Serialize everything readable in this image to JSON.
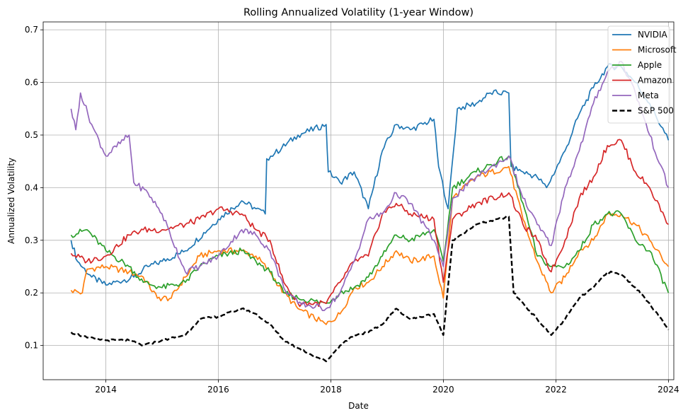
{
  "chart_data": {
    "type": "line",
    "title": "Rolling Annualized Volatility (1-year Window)",
    "xlabel": "Date",
    "ylabel": "Annualized Volatility",
    "xlim": [
      "2012-11-20",
      "2024-02-05"
    ],
    "ylim": [
      0.035,
      0.715
    ],
    "x_ticks": [
      "2014-01-01",
      "2016-01-01",
      "2018-01-01",
      "2020-01-01",
      "2022-01-01",
      "2024-01-01"
    ],
    "x_tick_labels": [
      "2014",
      "2016",
      "2018",
      "2020",
      "2022",
      "2024"
    ],
    "y_ticks": [
      0.1,
      0.2,
      0.3,
      0.4,
      0.5,
      0.6,
      0.7
    ],
    "y_tick_labels": [
      "0.1",
      "0.2",
      "0.3",
      "0.4",
      "0.5",
      "0.6",
      "0.7"
    ],
    "grid": true,
    "legend_position": "top-right",
    "series": [
      {
        "name": "NVIDIA",
        "color": "#1f77b4",
        "style": "solid",
        "points": [
          [
            "2013-05-20",
            0.3
          ],
          [
            "2013-07-01",
            0.26
          ],
          [
            "2013-10-01",
            0.23
          ],
          [
            "2014-01-01",
            0.215
          ],
          [
            "2014-07-01",
            0.23
          ],
          [
            "2014-10-01",
            0.25
          ],
          [
            "2015-01-01",
            0.26
          ],
          [
            "2015-06-01",
            0.28
          ],
          [
            "2016-01-01",
            0.34
          ],
          [
            "2016-06-01",
            0.375
          ],
          [
            "2016-09-01",
            0.36
          ],
          [
            "2016-11-01",
            0.35
          ],
          [
            "2016-11-10",
            0.455
          ],
          [
            "2017-01-01",
            0.465
          ],
          [
            "2017-06-01",
            0.5
          ],
          [
            "2017-12-01",
            0.52
          ],
          [
            "2017-12-15",
            0.43
          ],
          [
            "2018-03-01",
            0.41
          ],
          [
            "2018-06-01",
            0.43
          ],
          [
            "2018-09-01",
            0.36
          ],
          [
            "2018-12-01",
            0.47
          ],
          [
            "2019-03-01",
            0.52
          ],
          [
            "2019-06-01",
            0.51
          ],
          [
            "2019-11-01",
            0.53
          ],
          [
            "2019-12-01",
            0.44
          ],
          [
            "2020-02-01",
            0.36
          ],
          [
            "2020-04-01",
            0.55
          ],
          [
            "2020-08-01",
            0.56
          ],
          [
            "2020-11-01",
            0.58
          ],
          [
            "2021-03-01",
            0.58
          ],
          [
            "2021-03-15",
            0.44
          ],
          [
            "2021-06-01",
            0.43
          ],
          [
            "2021-09-01",
            0.42
          ],
          [
            "2021-11-01",
            0.4
          ],
          [
            "2022-03-01",
            0.47
          ],
          [
            "2022-06-01",
            0.54
          ],
          [
            "2022-09-01",
            0.59
          ],
          [
            "2022-12-01",
            0.63
          ],
          [
            "2023-03-01",
            0.63
          ],
          [
            "2023-06-01",
            0.6
          ],
          [
            "2023-09-01",
            0.56
          ],
          [
            "2024-01-01",
            0.49
          ]
        ]
      },
      {
        "name": "Microsoft",
        "color": "#ff7f0e",
        "style": "solid",
        "points": [
          [
            "2013-05-20",
            0.205
          ],
          [
            "2013-08-01",
            0.2
          ],
          [
            "2013-09-01",
            0.245
          ],
          [
            "2014-01-01",
            0.25
          ],
          [
            "2014-06-01",
            0.24
          ],
          [
            "2014-09-01",
            0.23
          ],
          [
            "2014-12-01",
            0.19
          ],
          [
            "2015-03-01",
            0.19
          ],
          [
            "2015-06-01",
            0.23
          ],
          [
            "2015-09-01",
            0.27
          ],
          [
            "2016-01-01",
            0.28
          ],
          [
            "2016-06-01",
            0.28
          ],
          [
            "2016-09-01",
            0.27
          ],
          [
            "2016-12-01",
            0.24
          ],
          [
            "2017-03-01",
            0.2
          ],
          [
            "2017-06-01",
            0.17
          ],
          [
            "2017-12-01",
            0.14
          ],
          [
            "2018-03-01",
            0.16
          ],
          [
            "2018-06-01",
            0.21
          ],
          [
            "2018-09-01",
            0.22
          ],
          [
            "2018-12-01",
            0.25
          ],
          [
            "2019-03-01",
            0.28
          ],
          [
            "2019-06-01",
            0.26
          ],
          [
            "2019-11-01",
            0.27
          ],
          [
            "2020-01-01",
            0.19
          ],
          [
            "2020-03-01",
            0.38
          ],
          [
            "2020-08-01",
            0.42
          ],
          [
            "2021-03-01",
            0.44
          ],
          [
            "2021-06-01",
            0.34
          ],
          [
            "2021-09-01",
            0.26
          ],
          [
            "2021-12-01",
            0.2
          ],
          [
            "2022-03-01",
            0.23
          ],
          [
            "2022-06-01",
            0.28
          ],
          [
            "2022-09-01",
            0.3
          ],
          [
            "2022-12-01",
            0.35
          ],
          [
            "2023-03-01",
            0.35
          ],
          [
            "2023-06-01",
            0.33
          ],
          [
            "2023-09-01",
            0.3
          ],
          [
            "2024-01-01",
            0.25
          ]
        ]
      },
      {
        "name": "Apple",
        "color": "#2ca02c",
        "style": "solid",
        "points": [
          [
            "2013-05-20",
            0.31
          ],
          [
            "2013-09-01",
            0.32
          ],
          [
            "2014-01-01",
            0.28
          ],
          [
            "2014-06-01",
            0.25
          ],
          [
            "2014-09-01",
            0.22
          ],
          [
            "2015-01-01",
            0.21
          ],
          [
            "2015-06-01",
            0.22
          ],
          [
            "2015-09-01",
            0.25
          ],
          [
            "2016-01-01",
            0.27
          ],
          [
            "2016-06-01",
            0.28
          ],
          [
            "2016-09-01",
            0.26
          ],
          [
            "2016-12-01",
            0.24
          ],
          [
            "2017-03-01",
            0.2
          ],
          [
            "2017-06-01",
            0.19
          ],
          [
            "2017-12-01",
            0.18
          ],
          [
            "2018-03-01",
            0.2
          ],
          [
            "2018-06-01",
            0.21
          ],
          [
            "2018-09-01",
            0.23
          ],
          [
            "2018-12-01",
            0.27
          ],
          [
            "2019-03-01",
            0.31
          ],
          [
            "2019-06-01",
            0.3
          ],
          [
            "2019-11-01",
            0.32
          ],
          [
            "2020-01-01",
            0.26
          ],
          [
            "2020-03-01",
            0.4
          ],
          [
            "2020-08-01",
            0.43
          ],
          [
            "2021-03-01",
            0.46
          ],
          [
            "2021-06-01",
            0.37
          ],
          [
            "2021-09-01",
            0.27
          ],
          [
            "2021-12-01",
            0.25
          ],
          [
            "2022-03-01",
            0.25
          ],
          [
            "2022-06-01",
            0.28
          ],
          [
            "2022-09-01",
            0.33
          ],
          [
            "2022-12-01",
            0.35
          ],
          [
            "2023-03-01",
            0.35
          ],
          [
            "2023-06-01",
            0.3
          ],
          [
            "2023-09-01",
            0.28
          ],
          [
            "2024-01-01",
            0.2
          ]
        ]
      },
      {
        "name": "Amazon",
        "color": "#d62728",
        "style": "solid",
        "points": [
          [
            "2013-05-20",
            0.275
          ],
          [
            "2013-09-01",
            0.26
          ],
          [
            "2014-01-01",
            0.27
          ],
          [
            "2014-06-01",
            0.31
          ],
          [
            "2014-09-01",
            0.32
          ],
          [
            "2015-01-01",
            0.32
          ],
          [
            "2015-06-01",
            0.33
          ],
          [
            "2015-09-01",
            0.34
          ],
          [
            "2016-01-01",
            0.36
          ],
          [
            "2016-06-01",
            0.35
          ],
          [
            "2016-09-01",
            0.32
          ],
          [
            "2016-12-01",
            0.3
          ],
          [
            "2017-03-01",
            0.22
          ],
          [
            "2017-06-01",
            0.18
          ],
          [
            "2017-12-01",
            0.18
          ],
          [
            "2018-03-01",
            0.22
          ],
          [
            "2018-06-01",
            0.26
          ],
          [
            "2018-09-01",
            0.27
          ],
          [
            "2018-12-01",
            0.35
          ],
          [
            "2019-03-01",
            0.37
          ],
          [
            "2019-06-01",
            0.35
          ],
          [
            "2019-11-01",
            0.34
          ],
          [
            "2020-01-01",
            0.22
          ],
          [
            "2020-03-01",
            0.34
          ],
          [
            "2020-08-01",
            0.37
          ],
          [
            "2021-03-01",
            0.39
          ],
          [
            "2021-06-01",
            0.33
          ],
          [
            "2021-09-01",
            0.3
          ],
          [
            "2021-12-01",
            0.24
          ],
          [
            "2022-03-01",
            0.3
          ],
          [
            "2022-06-01",
            0.38
          ],
          [
            "2022-09-01",
            0.42
          ],
          [
            "2022-12-01",
            0.48
          ],
          [
            "2023-03-01",
            0.49
          ],
          [
            "2023-06-01",
            0.43
          ],
          [
            "2023-09-01",
            0.4
          ],
          [
            "2024-01-01",
            0.33
          ]
        ]
      },
      {
        "name": "Meta",
        "color": "#9467bd",
        "style": "solid",
        "points": [
          [
            "2013-05-20",
            0.55
          ],
          [
            "2013-06-20",
            0.51
          ],
          [
            "2013-07-20",
            0.58
          ],
          [
            "2013-10-01",
            0.52
          ],
          [
            "2014-01-01",
            0.46
          ],
          [
            "2014-06-01",
            0.5
          ],
          [
            "2014-07-01",
            0.41
          ],
          [
            "2014-10-01",
            0.39
          ],
          [
            "2015-01-01",
            0.35
          ],
          [
            "2015-06-01",
            0.24
          ],
          [
            "2015-09-01",
            0.25
          ],
          [
            "2016-01-01",
            0.27
          ],
          [
            "2016-06-01",
            0.32
          ],
          [
            "2016-09-01",
            0.31
          ],
          [
            "2016-12-01",
            0.28
          ],
          [
            "2017-03-01",
            0.21
          ],
          [
            "2017-06-01",
            0.18
          ],
          [
            "2017-12-01",
            0.17
          ],
          [
            "2018-03-01",
            0.2
          ],
          [
            "2018-06-01",
            0.26
          ],
          [
            "2018-09-01",
            0.34
          ],
          [
            "2018-12-01",
            0.35
          ],
          [
            "2019-03-01",
            0.39
          ],
          [
            "2019-06-01",
            0.37
          ],
          [
            "2019-11-01",
            0.3
          ],
          [
            "2020-01-01",
            0.25
          ],
          [
            "2020-03-01",
            0.38
          ],
          [
            "2020-08-01",
            0.42
          ],
          [
            "2021-03-01",
            0.46
          ],
          [
            "2021-06-01",
            0.38
          ],
          [
            "2021-09-01",
            0.33
          ],
          [
            "2021-12-01",
            0.29
          ],
          [
            "2022-03-01",
            0.4
          ],
          [
            "2022-06-01",
            0.47
          ],
          [
            "2022-09-01",
            0.56
          ],
          [
            "2022-12-01",
            0.62
          ],
          [
            "2023-03-01",
            0.64
          ],
          [
            "2023-06-01",
            0.58
          ],
          [
            "2023-09-01",
            0.5
          ],
          [
            "2024-01-01",
            0.4
          ]
        ]
      },
      {
        "name": "S&P 500",
        "color": "#000000",
        "style": "dashed",
        "points": [
          [
            "2013-05-20",
            0.125
          ],
          [
            "2013-09-01",
            0.115
          ],
          [
            "2014-01-01",
            0.11
          ],
          [
            "2014-06-01",
            0.11
          ],
          [
            "2014-09-01",
            0.1
          ],
          [
            "2015-01-01",
            0.11
          ],
          [
            "2015-06-01",
            0.12
          ],
          [
            "2015-09-01",
            0.15
          ],
          [
            "2016-01-01",
            0.155
          ],
          [
            "2016-06-01",
            0.17
          ],
          [
            "2016-09-01",
            0.16
          ],
          [
            "2016-12-01",
            0.14
          ],
          [
            "2017-03-01",
            0.11
          ],
          [
            "2017-06-01",
            0.095
          ],
          [
            "2017-12-01",
            0.07
          ],
          [
            "2018-03-01",
            0.1
          ],
          [
            "2018-06-01",
            0.12
          ],
          [
            "2018-09-01",
            0.125
          ],
          [
            "2018-12-01",
            0.14
          ],
          [
            "2019-03-01",
            0.17
          ],
          [
            "2019-06-01",
            0.15
          ],
          [
            "2019-11-01",
            0.16
          ],
          [
            "2020-01-01",
            0.12
          ],
          [
            "2020-03-01",
            0.3
          ],
          [
            "2020-08-01",
            0.33
          ],
          [
            "2021-03-01",
            0.345
          ],
          [
            "2021-04-01",
            0.2
          ],
          [
            "2021-09-01",
            0.15
          ],
          [
            "2021-12-01",
            0.12
          ],
          [
            "2022-03-01",
            0.15
          ],
          [
            "2022-06-01",
            0.19
          ],
          [
            "2022-09-01",
            0.21
          ],
          [
            "2022-12-01",
            0.24
          ],
          [
            "2023-03-01",
            0.235
          ],
          [
            "2023-06-01",
            0.21
          ],
          [
            "2023-09-01",
            0.18
          ],
          [
            "2024-01-01",
            0.13
          ]
        ]
      }
    ]
  }
}
